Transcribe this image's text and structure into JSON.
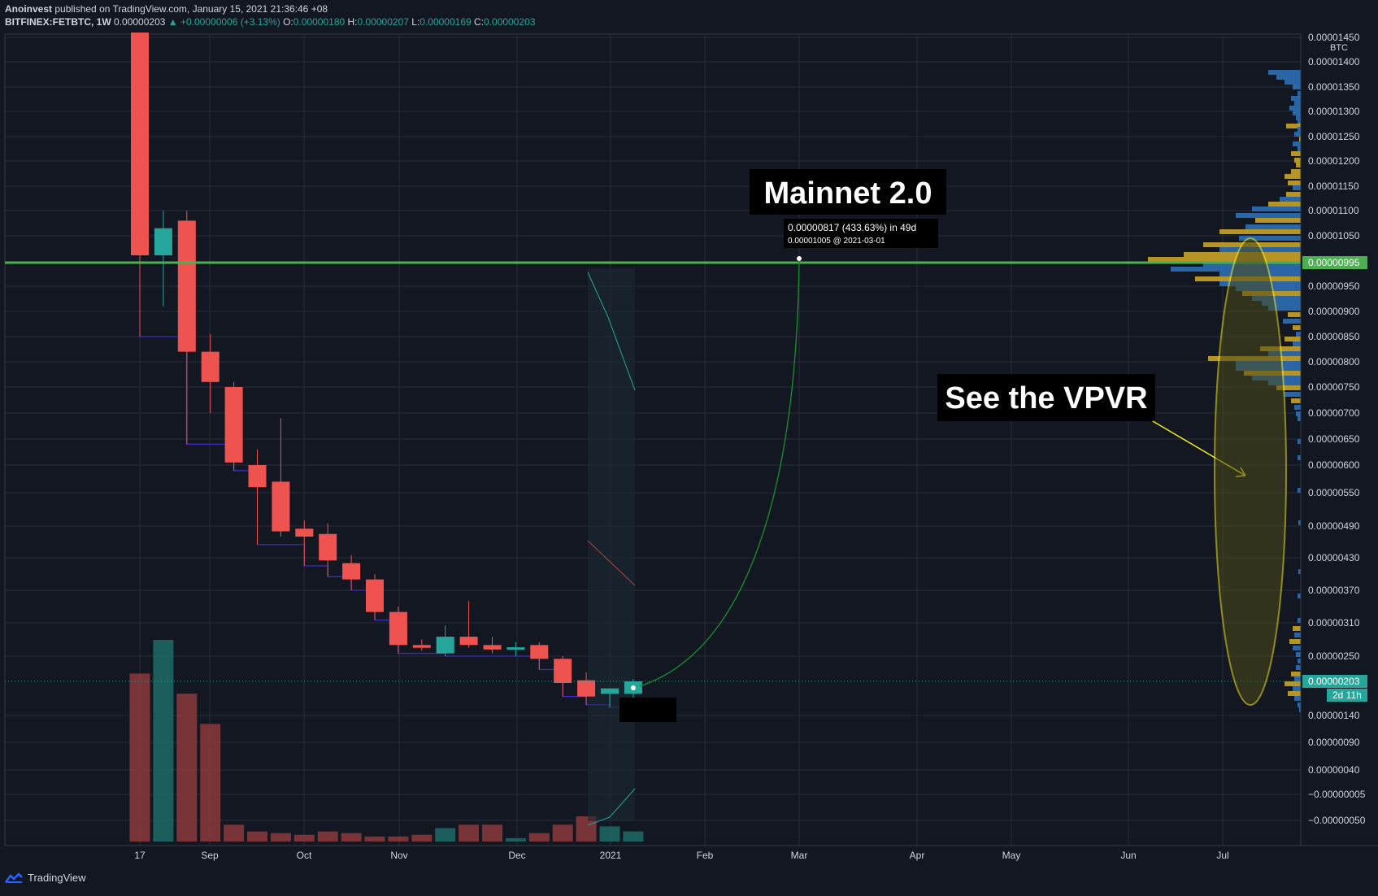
{
  "header": {
    "line1_author": "Anoinvest",
    "line1_rest": "published on TradingView.com, January 15, 2021 21:36:46 +08",
    "symbol": "BITFINEX:FETBTC, 1W",
    "last": "0.00000203",
    "change": "▲ +0.00000006 (+3.13%)",
    "o_label": "O:",
    "o": "0.00000180",
    "h_label": "H:",
    "h": "0.00000207",
    "l_label": "L:",
    "l": "0.00000169",
    "c_label": "C:",
    "c": "0.00000203"
  },
  "footer": {
    "brand": "TradingView"
  },
  "colors": {
    "bg": "#131722",
    "up": "#26a69a",
    "down": "#ef5350",
    "grid": "#2a2e39",
    "green_line": "#4caf50",
    "vpvr_blue": "#2962ff",
    "vpvr_gold": "#c9a227",
    "ellipse": "#f5ea1c"
  },
  "chart_data": {
    "type": "candlestick",
    "price_unit": "BTC",
    "timeframe": "1W",
    "x_labels": [
      "17",
      "Sep",
      "Oct",
      "Nov",
      "Dec",
      "2021",
      "Feb",
      "Mar",
      "Apr",
      "May",
      "Jun",
      "Jul"
    ],
    "y_ticks": [
      "0.00001450",
      "0.00001400",
      "0.00001350",
      "0.00001300",
      "0.00001250",
      "0.00001200",
      "0.00001150",
      "0.00001100",
      "0.00001050",
      "0.00000950",
      "0.00000900",
      "0.00000850",
      "0.00000800",
      "0.00000750",
      "0.00000700",
      "0.00000650",
      "0.00000600",
      "0.00000550",
      "0.00000490",
      "0.00000430",
      "0.00000370",
      "0.00000310",
      "0.00000250",
      "0.00000140",
      "0.00000090",
      "0.00000040",
      "−0.00000005",
      "−0.00000050"
    ],
    "candles": [
      {
        "o": 1460,
        "h": 1460,
        "l": 850,
        "c": 1010,
        "v": 100
      },
      {
        "o": 1010,
        "h": 1100,
        "l": 910,
        "c": 1065,
        "v": 120
      },
      {
        "o": 1080,
        "h": 1100,
        "l": 640,
        "c": 820,
        "v": 88
      },
      {
        "o": 820,
        "h": 855,
        "l": 700,
        "c": 760,
        "v": 70
      },
      {
        "o": 750,
        "h": 760,
        "l": 590,
        "c": 605,
        "v": 10
      },
      {
        "o": 600,
        "h": 630,
        "l": 455,
        "c": 560,
        "v": 6
      },
      {
        "o": 570,
        "h": 690,
        "l": 470,
        "c": 480,
        "v": 5
      },
      {
        "o": 485,
        "h": 500,
        "l": 415,
        "c": 470,
        "v": 4
      },
      {
        "o": 475,
        "h": 495,
        "l": 395,
        "c": 425,
        "v": 6
      },
      {
        "o": 420,
        "h": 435,
        "l": 370,
        "c": 390,
        "v": 5
      },
      {
        "o": 390,
        "h": 400,
        "l": 315,
        "c": 330,
        "v": 3
      },
      {
        "o": 330,
        "h": 340,
        "l": 255,
        "c": 270,
        "v": 3
      },
      {
        "o": 270,
        "h": 280,
        "l": 260,
        "c": 265,
        "v": 4
      },
      {
        "o": 255,
        "h": 305,
        "l": 250,
        "c": 285,
        "v": 8
      },
      {
        "o": 285,
        "h": 350,
        "l": 265,
        "c": 270,
        "v": 10
      },
      {
        "o": 270,
        "h": 285,
        "l": 255,
        "c": 262,
        "v": 10
      },
      {
        "o": 262,
        "h": 275,
        "l": 250,
        "c": 266,
        "v": 2
      },
      {
        "o": 270,
        "h": 275,
        "l": 225,
        "c": 245,
        "v": 5
      },
      {
        "o": 245,
        "h": 250,
        "l": 175,
        "c": 200,
        "v": 10
      },
      {
        "o": 205,
        "h": 220,
        "l": 160,
        "c": 175,
        "v": 15
      },
      {
        "o": 180,
        "h": 190,
        "l": 155,
        "c": 190,
        "v": 9
      },
      {
        "o": 180,
        "h": 207,
        "l": 169,
        "c": 203,
        "v": 6
      }
    ],
    "annotations": {
      "mainnet_label": "Mainnet 2.0",
      "projection_line1": "0.00000817 (433.63%) in 49d",
      "projection_line2": "0.00001005 @ 2021-03-01",
      "vpvr_label": "See the VPVR"
    },
    "horizontal_line_price": "0.00000995",
    "last_price_tag": "0.00000203",
    "countdown": "2d 11h"
  }
}
